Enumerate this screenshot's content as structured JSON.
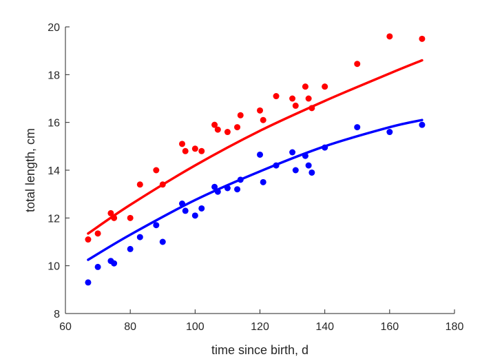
{
  "chart_data": {
    "type": "scatter",
    "title": "",
    "xlabel": "time since birth, d",
    "ylabel": "total length, cm",
    "xlim": [
      60,
      180
    ],
    "ylim": [
      8,
      20
    ],
    "xticks": [
      60,
      80,
      100,
      120,
      140,
      160,
      180
    ],
    "yticks": [
      8,
      10,
      12,
      14,
      16,
      18,
      20
    ],
    "grid": false,
    "legend": "none",
    "series": [
      {
        "color": "#ff0000",
        "points": [
          [
            67,
            11.1
          ],
          [
            70,
            11.35
          ],
          [
            74,
            12.2
          ],
          [
            75,
            12.0
          ],
          [
            80,
            12.0
          ],
          [
            83,
            13.4
          ],
          [
            88,
            14.0
          ],
          [
            90,
            13.4
          ],
          [
            96,
            15.1
          ],
          [
            97,
            14.8
          ],
          [
            100,
            14.9
          ],
          [
            102,
            14.8
          ],
          [
            106,
            15.9
          ],
          [
            107,
            15.7
          ],
          [
            110,
            15.6
          ],
          [
            113,
            15.8
          ],
          [
            114,
            16.3
          ],
          [
            120,
            16.5
          ],
          [
            121,
            16.1
          ],
          [
            125,
            17.1
          ],
          [
            130,
            17.0
          ],
          [
            131,
            16.7
          ],
          [
            134,
            17.5
          ],
          [
            135,
            17.0
          ],
          [
            136,
            16.6
          ],
          [
            140,
            17.5
          ],
          [
            150,
            18.45
          ],
          [
            160,
            19.6
          ],
          [
            170,
            19.5
          ]
        ],
        "fit": [
          [
            67,
            11.35
          ],
          [
            80,
            12.55
          ],
          [
            100,
            14.2
          ],
          [
            120,
            15.65
          ],
          [
            140,
            16.9
          ],
          [
            160,
            18.05
          ],
          [
            170,
            18.6
          ]
        ]
      },
      {
        "color": "#0000ff",
        "points": [
          [
            67,
            9.3
          ],
          [
            70,
            9.95
          ],
          [
            74,
            10.2
          ],
          [
            75,
            10.1
          ],
          [
            80,
            10.7
          ],
          [
            83,
            11.2
          ],
          [
            88,
            11.7
          ],
          [
            90,
            11.0
          ],
          [
            96,
            12.6
          ],
          [
            97,
            12.3
          ],
          [
            100,
            12.1
          ],
          [
            102,
            12.4
          ],
          [
            106,
            13.3
          ],
          [
            107,
            13.1
          ],
          [
            110,
            13.25
          ],
          [
            113,
            13.2
          ],
          [
            114,
            13.6
          ],
          [
            120,
            14.65
          ],
          [
            121,
            13.5
          ],
          [
            125,
            14.2
          ],
          [
            130,
            14.75
          ],
          [
            131,
            14.0
          ],
          [
            134,
            14.6
          ],
          [
            135,
            14.2
          ],
          [
            136,
            13.9
          ],
          [
            140,
            14.95
          ],
          [
            150,
            15.8
          ],
          [
            160,
            15.6
          ],
          [
            170,
            15.9
          ]
        ],
        "fit": [
          [
            67,
            10.25
          ],
          [
            80,
            11.3
          ],
          [
            100,
            12.75
          ],
          [
            120,
            13.95
          ],
          [
            140,
            15.0
          ],
          [
            160,
            15.8
          ],
          [
            170,
            16.1
          ]
        ]
      }
    ]
  }
}
